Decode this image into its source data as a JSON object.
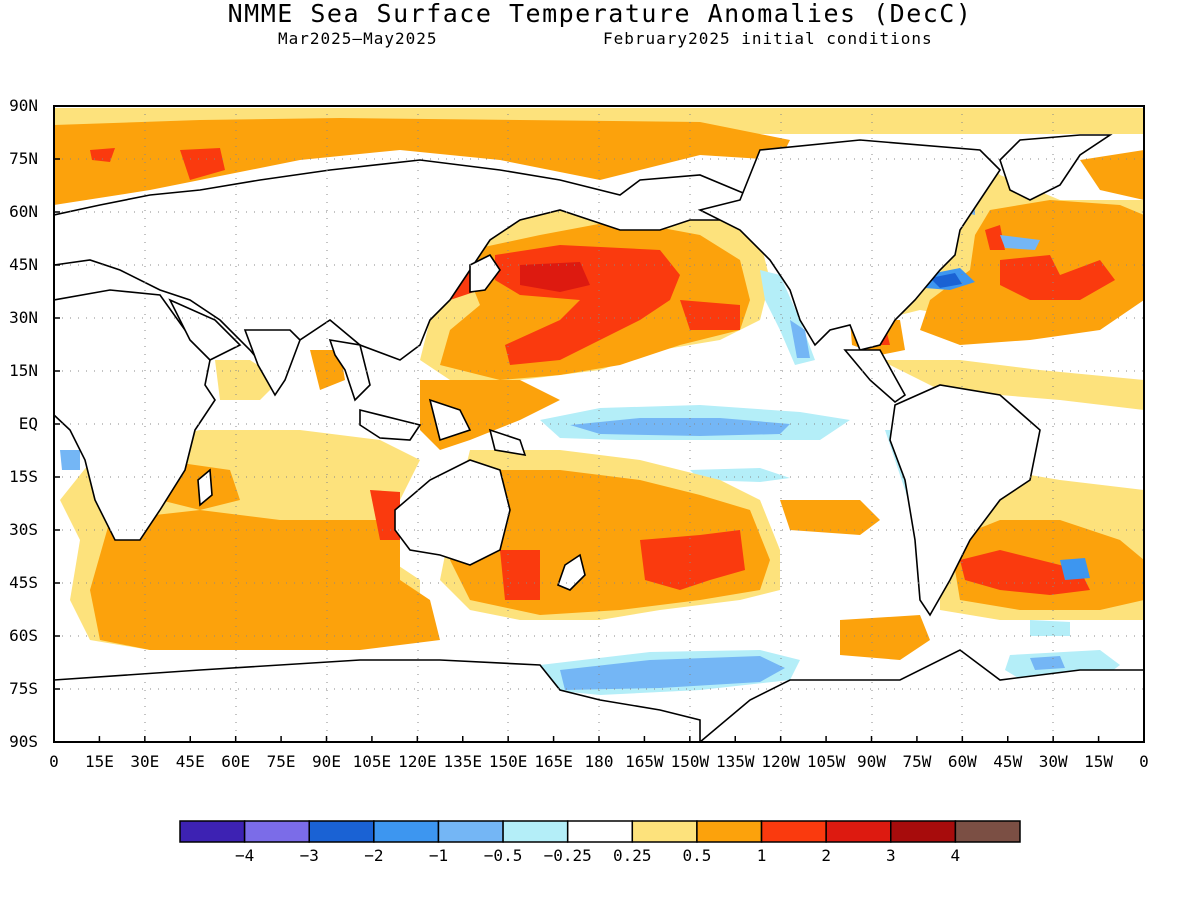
{
  "title": "NMME Sea Surface Temperature Anomalies (DecC)",
  "subtitle_left": "Mar2025—May2025",
  "subtitle_right": "February2025 initial conditions",
  "y_ticks": [
    "90N",
    "75N",
    "60N",
    "45N",
    "30N",
    "15N",
    "EQ",
    "15S",
    "30S",
    "45S",
    "60S",
    "75S",
    "90S"
  ],
  "x_ticks": [
    "0",
    "15E",
    "30E",
    "45E",
    "60E",
    "75E",
    "90E",
    "105E",
    "120E",
    "135E",
    "150E",
    "165E",
    "180",
    "165W",
    "150W",
    "135W",
    "120W",
    "105W",
    "90W",
    "75W",
    "60W",
    "45W",
    "30W",
    "15W",
    "0"
  ],
  "colorbar": {
    "colors": [
      "#3d22b3",
      "#7b6ce8",
      "#1a62d4",
      "#3d96f0",
      "#74b6f5",
      "#b4eef8",
      "#ffffff",
      "#fde27c",
      "#fca20c",
      "#fa3a0e",
      "#dd1a10",
      "#a70c0c",
      "#7b4f44"
    ],
    "labels": [
      "-4",
      "-3",
      "-2",
      "-1",
      "-0.5",
      "-0.25",
      "0.25",
      "0.5",
      "1",
      "2",
      "3",
      "4"
    ]
  }
}
